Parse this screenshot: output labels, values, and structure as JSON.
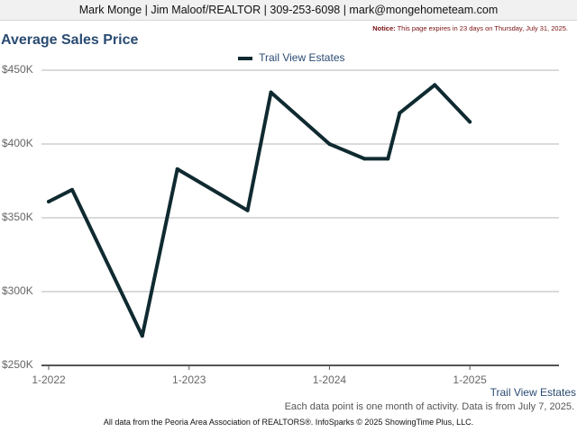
{
  "header": {
    "contact_line": "Mark Monge | Jim Maloof/REALTOR | 309-253-6098 | mark@mongehometeam.com"
  },
  "notice": {
    "label": "Notice:",
    "text": "This page expires in 23 days on Thursday, July 31, 2025."
  },
  "footer": {
    "data_note": "Each data point is one month of activity. Data is from July 7, 2025.",
    "source": "All data from the Peoria Area Association of REALTORS®. InfoSparks © 2025 ShowingTime Plus, LLC."
  },
  "colors": {
    "line": "#0f2a30",
    "title": "#2a4b72",
    "grid": "#b5b5b5"
  },
  "chart_data": {
    "type": "line",
    "title": "Average Sales Price",
    "xlabel": "",
    "ylabel": "",
    "ylim": [
      250000,
      450000
    ],
    "yticks": [
      250000,
      300000,
      350000,
      400000,
      450000
    ],
    "ytick_labels": [
      "$250K",
      "$300K",
      "$350K",
      "$400K",
      "$450K"
    ],
    "xticks": [
      "2022-01",
      "2023-01",
      "2024-01",
      "2025-01"
    ],
    "xtick_labels": [
      "1-2022",
      "1-2023",
      "1-2024",
      "1-2025"
    ],
    "xlim": [
      "2022-01",
      "2025-06"
    ],
    "legend_position": "top-center",
    "grid": true,
    "series": [
      {
        "name": "Trail View Estates",
        "points": [
          {
            "x": "2022-01",
            "y": 361000
          },
          {
            "x": "2022-03",
            "y": 369000
          },
          {
            "x": "2022-09",
            "y": 270000
          },
          {
            "x": "2022-12",
            "y": 383000
          },
          {
            "x": "2023-06",
            "y": 355000
          },
          {
            "x": "2023-08",
            "y": 435000
          },
          {
            "x": "2024-01",
            "y": 400000
          },
          {
            "x": "2024-04",
            "y": 390000
          },
          {
            "x": "2024-06",
            "y": 390000
          },
          {
            "x": "2024-07",
            "y": 421000
          },
          {
            "x": "2024-10",
            "y": 440000
          },
          {
            "x": "2025-01",
            "y": 415000
          }
        ]
      }
    ]
  }
}
